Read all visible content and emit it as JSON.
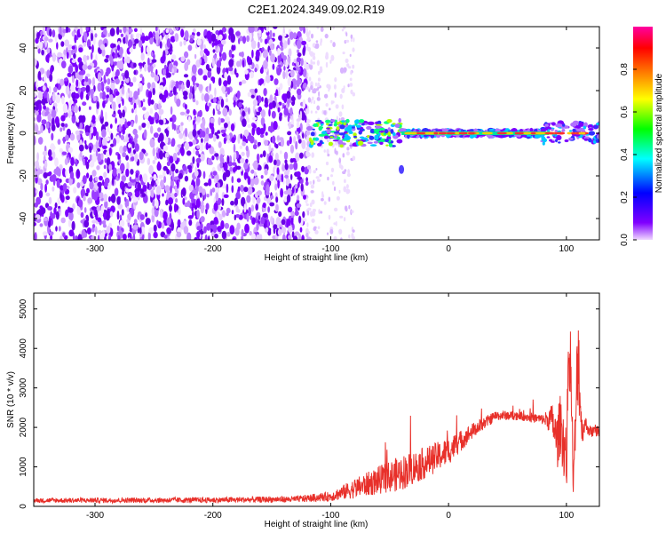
{
  "title": "C2E1.2024.349.09.02.R19",
  "chart_data": [
    {
      "type": "heatmap",
      "title": "",
      "xlabel": "Height of straight line (km)",
      "ylabel": "Frequency (Hz)",
      "xlim": [
        -352,
        128
      ],
      "ylim": [
        -50,
        50
      ],
      "xticks": [
        -300,
        -200,
        -100,
        0,
        100
      ],
      "yticks": [
        -40,
        -20,
        0,
        20,
        40
      ],
      "noise_region_x": [
        -352,
        -120
      ],
      "sparse_region_x": [
        -120,
        -80
      ],
      "signal_band_hz": 0,
      "signal_start_x": -120,
      "signal_dip": {
        "x": -40,
        "y": -17
      },
      "colorbar": {
        "label": "Normalized spectral amplitude",
        "range": [
          0,
          1
        ],
        "ticks": [
          "0.0",
          "0.2",
          "0.4",
          "0.6",
          "0.8"
        ],
        "colormap": [
          "#f0d8ff",
          "#8000ff",
          "#0000ff",
          "#00ffff",
          "#00ff00",
          "#ffff00",
          "#ff8000",
          "#ff0000",
          "#ff00a0"
        ]
      }
    },
    {
      "type": "line",
      "title": "",
      "xlabel": "Height of straight line (km)",
      "ylabel": "SNR (10 * v/v)",
      "xlim": [
        -352,
        128
      ],
      "ylim": [
        0,
        5400
      ],
      "xticks": [
        -300,
        -200,
        -100,
        0,
        100
      ],
      "yticks": [
        0,
        1000,
        2000,
        3000,
        4000,
        5000
      ],
      "color": "#e8302a",
      "envelope": {
        "x": [
          -352,
          -200,
          -130,
          -100,
          -80,
          -60,
          -40,
          -20,
          0,
          20,
          40,
          60,
          80,
          88,
          92,
          95,
          100,
          103,
          106,
          110,
          113,
          116,
          120,
          128
        ],
        "y": [
          150,
          160,
          180,
          250,
          450,
          650,
          850,
          1100,
          1400,
          1900,
          2300,
          2300,
          2200,
          2200,
          1600,
          2100,
          1200,
          4300,
          500,
          4000,
          1900,
          2100,
          1900,
          1900
        ],
        "amp": [
          60,
          70,
          80,
          120,
          250,
          350,
          450,
          400,
          350,
          200,
          120,
          120,
          130,
          400,
          700,
          800,
          900,
          1200,
          500,
          1500,
          400,
          200,
          150,
          150
        ]
      }
    }
  ]
}
